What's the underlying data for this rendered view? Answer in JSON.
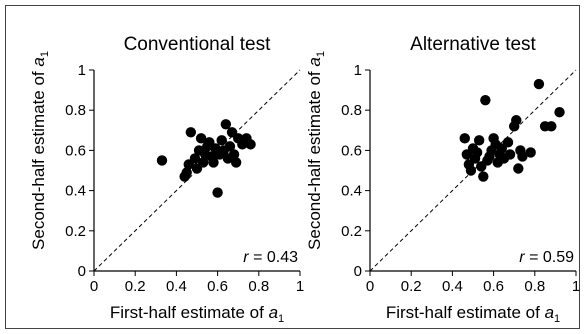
{
  "chart_data": [
    {
      "type": "scatter",
      "title": "Conventional test",
      "xlabel": "First-half estimate of a",
      "xlabel_subscript": "1",
      "ylabel": "Second-half estimate of a",
      "ylabel_subscript": "1",
      "xlim": [
        0,
        1
      ],
      "ylim": [
        0,
        1
      ],
      "xticks": [
        "0",
        "0.2",
        "0.4",
        "0.6",
        "0.8",
        "1"
      ],
      "yticks": [
        "0",
        "0.2",
        "0.4",
        "0.6",
        "0.8",
        "1"
      ],
      "diagonal_reference": true,
      "annotation_var": "r",
      "annotation_value": " = 0.43",
      "points": [
        {
          "x": 0.33,
          "y": 0.55
        },
        {
          "x": 0.44,
          "y": 0.47
        },
        {
          "x": 0.45,
          "y": 0.49
        },
        {
          "x": 0.46,
          "y": 0.53
        },
        {
          "x": 0.47,
          "y": 0.69
        },
        {
          "x": 0.49,
          "y": 0.56
        },
        {
          "x": 0.5,
          "y": 0.51
        },
        {
          "x": 0.51,
          "y": 0.6
        },
        {
          "x": 0.52,
          "y": 0.66
        },
        {
          "x": 0.53,
          "y": 0.54
        },
        {
          "x": 0.54,
          "y": 0.58
        },
        {
          "x": 0.55,
          "y": 0.62
        },
        {
          "x": 0.56,
          "y": 0.64
        },
        {
          "x": 0.57,
          "y": 0.57
        },
        {
          "x": 0.58,
          "y": 0.54
        },
        {
          "x": 0.59,
          "y": 0.61
        },
        {
          "x": 0.6,
          "y": 0.39
        },
        {
          "x": 0.61,
          "y": 0.58
        },
        {
          "x": 0.62,
          "y": 0.65
        },
        {
          "x": 0.63,
          "y": 0.6
        },
        {
          "x": 0.64,
          "y": 0.73
        },
        {
          "x": 0.65,
          "y": 0.56
        },
        {
          "x": 0.66,
          "y": 0.62
        },
        {
          "x": 0.67,
          "y": 0.69
        },
        {
          "x": 0.68,
          "y": 0.58
        },
        {
          "x": 0.69,
          "y": 0.54
        },
        {
          "x": 0.7,
          "y": 0.66
        },
        {
          "x": 0.72,
          "y": 0.63
        },
        {
          "x": 0.74,
          "y": 0.66
        },
        {
          "x": 0.76,
          "y": 0.63
        }
      ]
    },
    {
      "type": "scatter",
      "title": "Alternative test",
      "xlabel": "First-half estimate of a",
      "xlabel_subscript": "1",
      "ylabel": "Second-half estimate of a",
      "ylabel_subscript": "1",
      "xlim": [
        0,
        1
      ],
      "ylim": [
        0,
        1
      ],
      "xticks": [
        "0",
        "0.2",
        "0.4",
        "0.6",
        "0.8",
        "1"
      ],
      "yticks": [
        "0",
        "0.2",
        "0.4",
        "0.6",
        "0.8",
        "1"
      ],
      "diagonal_reference": true,
      "annotation_var": "r",
      "annotation_value": " = 0.59",
      "points": [
        {
          "x": 0.46,
          "y": 0.66
        },
        {
          "x": 0.47,
          "y": 0.58
        },
        {
          "x": 0.48,
          "y": 0.53
        },
        {
          "x": 0.49,
          "y": 0.5
        },
        {
          "x": 0.5,
          "y": 0.61
        },
        {
          "x": 0.51,
          "y": 0.56
        },
        {
          "x": 0.52,
          "y": 0.59
        },
        {
          "x": 0.53,
          "y": 0.65
        },
        {
          "x": 0.54,
          "y": 0.52
        },
        {
          "x": 0.55,
          "y": 0.47
        },
        {
          "x": 0.56,
          "y": 0.85
        },
        {
          "x": 0.57,
          "y": 0.55
        },
        {
          "x": 0.58,
          "y": 0.57
        },
        {
          "x": 0.59,
          "y": 0.6
        },
        {
          "x": 0.6,
          "y": 0.66
        },
        {
          "x": 0.61,
          "y": 0.63
        },
        {
          "x": 0.62,
          "y": 0.54
        },
        {
          "x": 0.63,
          "y": 0.58
        },
        {
          "x": 0.64,
          "y": 0.61
        },
        {
          "x": 0.65,
          "y": 0.56
        },
        {
          "x": 0.67,
          "y": 0.64
        },
        {
          "x": 0.68,
          "y": 0.58
        },
        {
          "x": 0.7,
          "y": 0.72
        },
        {
          "x": 0.71,
          "y": 0.75
        },
        {
          "x": 0.72,
          "y": 0.51
        },
        {
          "x": 0.73,
          "y": 0.6
        },
        {
          "x": 0.74,
          "y": 0.57
        },
        {
          "x": 0.78,
          "y": 0.59
        },
        {
          "x": 0.82,
          "y": 0.93
        },
        {
          "x": 0.85,
          "y": 0.72
        },
        {
          "x": 0.88,
          "y": 0.72
        },
        {
          "x": 0.92,
          "y": 0.79
        }
      ]
    }
  ]
}
